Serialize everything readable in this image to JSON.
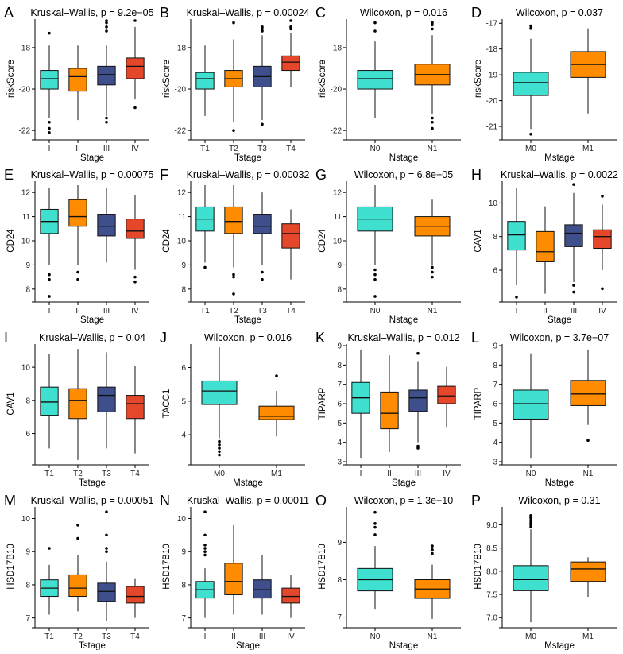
{
  "colors": {
    "cyan": "#40E0D0",
    "orange": "#FF8C00",
    "navy": "#3F4F8C",
    "red": "#E5472B",
    "axis": "#000000"
  },
  "chart_data": [
    {
      "type": "box",
      "letter": "A",
      "title": "Kruskal–Wallis, p = 9.2e−05",
      "ylabel": "riskScore",
      "xlabel": "Stage",
      "ylim": [
        -22.3,
        -16.7
      ],
      "ticks": [
        -22,
        -20,
        -18
      ],
      "categories": [
        "I",
        "II",
        "III",
        "IV"
      ],
      "colorKeys": [
        "cyan",
        "orange",
        "navy",
        "red"
      ],
      "boxes": [
        {
          "q1": -20.0,
          "median": -19.5,
          "q3": -19.1,
          "wlo": -21.4,
          "whi": -17.9,
          "outliers": [
            -17.3,
            -21.6,
            -21.9,
            -22.1
          ]
        },
        {
          "q1": -20.1,
          "median": -19.4,
          "q3": -19.0,
          "wlo": -21.5,
          "whi": -17.9,
          "outliers": []
        },
        {
          "q1": -19.8,
          "median": -19.3,
          "q3": -18.9,
          "wlo": -21.3,
          "whi": -17.9,
          "outliers": [
            -16.7,
            -16.8,
            -17.0,
            -17.2,
            -21.4,
            -21.6
          ]
        },
        {
          "q1": -19.5,
          "median": -18.9,
          "q3": -18.5,
          "wlo": -20.5,
          "whi": -17.0,
          "outliers": [
            -16.7,
            -20.9
          ]
        }
      ]
    },
    {
      "type": "box",
      "letter": "B",
      "title": "Kruskal–Wallis, p = 0.00024",
      "ylabel": "riskScore",
      "xlabel": "Tstage",
      "ylim": [
        -22.3,
        -16.7
      ],
      "ticks": [
        -22,
        -20,
        -18
      ],
      "categories": [
        "T1",
        "T2",
        "T3",
        "T4"
      ],
      "colorKeys": [
        "cyan",
        "orange",
        "navy",
        "red"
      ],
      "boxes": [
        {
          "q1": -20.0,
          "median": -19.5,
          "q3": -19.2,
          "wlo": -21.3,
          "whi": -17.9,
          "outliers": []
        },
        {
          "q1": -19.9,
          "median": -19.5,
          "q3": -19.1,
          "wlo": -21.6,
          "whi": -17.6,
          "outliers": [
            -16.8,
            -22.0
          ]
        },
        {
          "q1": -19.9,
          "median": -19.4,
          "q3": -18.9,
          "wlo": -21.5,
          "whi": -17.4,
          "outliers": [
            -17.0,
            -17.1,
            -17.2,
            -21.7
          ]
        },
        {
          "q1": -19.1,
          "median": -18.7,
          "q3": -18.4,
          "wlo": -19.9,
          "whi": -17.3,
          "outliers": [
            -16.7,
            -17.0,
            -17.1
          ]
        }
      ]
    },
    {
      "type": "box",
      "letter": "C",
      "title": "Wilcoxon, p = 0.016",
      "ylabel": "riskScore",
      "xlabel": "Nstage",
      "ylim": [
        -22.3,
        -16.7
      ],
      "ticks": [
        -22,
        -20,
        -18
      ],
      "categories": [
        "N0",
        "N1"
      ],
      "colorKeys": [
        "cyan",
        "orange"
      ],
      "boxes": [
        {
          "q1": -20.0,
          "median": -19.5,
          "q3": -19.1,
          "wlo": -21.4,
          "whi": -17.7,
          "outliers": [
            -16.8,
            -17.2
          ]
        },
        {
          "q1": -19.8,
          "median": -19.3,
          "q3": -18.8,
          "wlo": -21.2,
          "whi": -17.4,
          "outliers": [
            -16.8,
            -16.9,
            -17.1,
            -21.4,
            -21.6,
            -21.9
          ]
        }
      ]
    },
    {
      "type": "box",
      "letter": "D",
      "title": "Wilcoxon, p = 0.037",
      "ylabel": "riskScore",
      "xlabel": "Mstage",
      "ylim": [
        -21.4,
        -16.9
      ],
      "ticks": [
        -21,
        -20,
        -19,
        -18,
        -17
      ],
      "categories": [
        "M0",
        "M1"
      ],
      "colorKeys": [
        "cyan",
        "orange"
      ],
      "boxes": [
        {
          "q1": -19.8,
          "median": -19.3,
          "q3": -18.9,
          "wlo": -21.1,
          "whi": -17.6,
          "outliers": [
            -17.1,
            -17.2,
            -21.3
          ]
        },
        {
          "q1": -19.1,
          "median": -18.6,
          "q3": -18.1,
          "wlo": -20.5,
          "whi": -17.2,
          "outliers": []
        }
      ]
    },
    {
      "type": "box",
      "letter": "E",
      "title": "Kruskal–Wallis, p = 0.00075",
      "ylabel": "CD24",
      "xlabel": "Stage",
      "ylim": [
        7.6,
        12.4
      ],
      "ticks": [
        8,
        9,
        10,
        11,
        12
      ],
      "categories": [
        "I",
        "II",
        "III",
        "IV"
      ],
      "colorKeys": [
        "cyan",
        "orange",
        "navy",
        "red"
      ],
      "boxes": [
        {
          "q1": 10.3,
          "median": 10.8,
          "q3": 11.3,
          "wlo": 9.0,
          "whi": 12.2,
          "outliers": [
            8.6,
            8.4,
            7.7
          ]
        },
        {
          "q1": 10.6,
          "median": 11.0,
          "q3": 11.7,
          "wlo": 9.0,
          "whi": 12.3,
          "outliers": [
            8.7,
            8.4
          ]
        },
        {
          "q1": 10.2,
          "median": 10.6,
          "q3": 11.1,
          "wlo": 9.1,
          "whi": 12.2,
          "outliers": []
        },
        {
          "q1": 10.1,
          "median": 10.4,
          "q3": 10.9,
          "wlo": 8.8,
          "whi": 11.9,
          "outliers": [
            8.5,
            8.3
          ]
        }
      ]
    },
    {
      "type": "box",
      "letter": "F",
      "title": "Kruskal–Wallis, p = 0.00032",
      "ylabel": "CD24",
      "xlabel": "Tstage",
      "ylim": [
        7.6,
        12.4
      ],
      "ticks": [
        8,
        9,
        10,
        11,
        12
      ],
      "categories": [
        "T1",
        "T2",
        "T3",
        "T4"
      ],
      "colorKeys": [
        "cyan",
        "orange",
        "navy",
        "red"
      ],
      "boxes": [
        {
          "q1": 10.4,
          "median": 10.9,
          "q3": 11.4,
          "wlo": 9.1,
          "whi": 12.3,
          "outliers": [
            8.9
          ]
        },
        {
          "q1": 10.3,
          "median": 10.8,
          "q3": 11.4,
          "wlo": 8.9,
          "whi": 12.3,
          "outliers": [
            8.6,
            8.5,
            7.8
          ]
        },
        {
          "q1": 10.3,
          "median": 10.6,
          "q3": 11.1,
          "wlo": 9.0,
          "whi": 12.0,
          "outliers": [
            8.7,
            8.4
          ]
        },
        {
          "q1": 9.7,
          "median": 10.3,
          "q3": 10.7,
          "wlo": 8.4,
          "whi": 11.3,
          "outliers": []
        }
      ]
    },
    {
      "type": "box",
      "letter": "G",
      "title": "Wilcoxon, p = 6.8e−05",
      "ylabel": "CD24",
      "xlabel": "Nstage",
      "ylim": [
        7.6,
        12.4
      ],
      "ticks": [
        8,
        9,
        10,
        11,
        12
      ],
      "categories": [
        "N0",
        "N1"
      ],
      "colorKeys": [
        "cyan",
        "orange"
      ],
      "boxes": [
        {
          "q1": 10.4,
          "median": 10.9,
          "q3": 11.4,
          "wlo": 9.0,
          "whi": 12.3,
          "outliers": [
            8.8,
            8.6,
            8.4,
            7.7
          ]
        },
        {
          "q1": 10.2,
          "median": 10.6,
          "q3": 11.0,
          "wlo": 9.0,
          "whi": 11.7,
          "outliers": [
            8.9,
            8.7,
            8.5
          ]
        }
      ]
    },
    {
      "type": "box",
      "letter": "H",
      "title": "Kruskal–Wallis, p = 0.0022",
      "ylabel": "CAV1",
      "xlabel": "Stage",
      "ylim": [
        4.3,
        11.2
      ],
      "ticks": [
        6,
        8,
        10
      ],
      "categories": [
        "I",
        "II",
        "III",
        "IV"
      ],
      "colorKeys": [
        "cyan",
        "orange",
        "navy",
        "red"
      ],
      "boxes": [
        {
          "q1": 7.2,
          "median": 8.1,
          "q3": 8.9,
          "wlo": 5.1,
          "whi": 10.9,
          "outliers": [
            4.4
          ]
        },
        {
          "q1": 6.5,
          "median": 7.1,
          "q3": 8.3,
          "wlo": 4.6,
          "whi": 9.8,
          "outliers": []
        },
        {
          "q1": 7.4,
          "median": 8.2,
          "q3": 8.7,
          "wlo": 5.3,
          "whi": 10.6,
          "outliers": [
            11.1,
            5.1,
            4.7
          ]
        },
        {
          "q1": 7.3,
          "median": 8.0,
          "q3": 8.4,
          "wlo": 6.0,
          "whi": 9.9,
          "outliers": [
            10.4,
            4.9
          ]
        }
      ]
    },
    {
      "type": "box",
      "letter": "I",
      "title": "Kruskal–Wallis, p = 0.04",
      "ylabel": "CAV1",
      "xlabel": "Tstage",
      "ylim": [
        4.3,
        11.3
      ],
      "ticks": [
        6,
        8,
        10
      ],
      "categories": [
        "T1",
        "T2",
        "T3",
        "T4"
      ],
      "colorKeys": [
        "cyan",
        "orange",
        "navy",
        "red"
      ],
      "boxes": [
        {
          "q1": 7.1,
          "median": 7.9,
          "q3": 8.8,
          "wlo": 5.1,
          "whi": 10.8,
          "outliers": []
        },
        {
          "q1": 6.9,
          "median": 8.0,
          "q3": 8.7,
          "wlo": 4.4,
          "whi": 11.1,
          "outliers": []
        },
        {
          "q1": 7.3,
          "median": 8.3,
          "q3": 8.8,
          "wlo": 5.1,
          "whi": 10.9,
          "outliers": []
        },
        {
          "q1": 6.9,
          "median": 7.8,
          "q3": 8.3,
          "wlo": 4.8,
          "whi": 10.1,
          "outliers": []
        }
      ]
    },
    {
      "type": "box",
      "letter": "J",
      "title": "Wilcoxon, p = 0.016",
      "ylabel": "TACC1",
      "xlabel": "Mstage",
      "ylim": [
        3.2,
        6.65
      ],
      "ticks": [
        4,
        5,
        6
      ],
      "categories": [
        "M0",
        "M1"
      ],
      "colorKeys": [
        "cyan",
        "orange"
      ],
      "boxes": [
        {
          "q1": 4.9,
          "median": 5.3,
          "q3": 5.6,
          "wlo": 3.9,
          "whi": 6.6,
          "outliers": [
            3.8,
            3.7,
            3.6,
            3.5,
            3.4
          ]
        },
        {
          "q1": 4.45,
          "median": 4.55,
          "q3": 4.85,
          "wlo": 3.95,
          "whi": 5.3,
          "outliers": [
            5.75
          ]
        }
      ]
    },
    {
      "type": "box",
      "letter": "K",
      "title": "Kruskal–Wallis, p = 0.012",
      "ylabel": "TIPARP",
      "xlabel": "Stage",
      "ylim": [
        3.0,
        9.0
      ],
      "ticks": [
        3,
        4,
        5,
        6,
        7,
        8,
        9
      ],
      "categories": [
        "I",
        "II",
        "III",
        "IV"
      ],
      "colorKeys": [
        "cyan",
        "orange",
        "navy",
        "red"
      ],
      "boxes": [
        {
          "q1": 5.5,
          "median": 6.3,
          "q3": 7.1,
          "wlo": 3.2,
          "whi": 8.8,
          "outliers": []
        },
        {
          "q1": 4.7,
          "median": 5.5,
          "q3": 6.6,
          "wlo": 3.5,
          "whi": 8.5,
          "outliers": []
        },
        {
          "q1": 5.6,
          "median": 6.3,
          "q3": 6.7,
          "wlo": 4.0,
          "whi": 8.2,
          "outliers": [
            8.6,
            3.8,
            3.7
          ]
        },
        {
          "q1": 6.0,
          "median": 6.4,
          "q3": 6.9,
          "wlo": 4.8,
          "whi": 7.9,
          "outliers": []
        }
      ]
    },
    {
      "type": "box",
      "letter": "L",
      "title": "Wilcoxon, p = 3.7e−07",
      "ylabel": "TIPARP",
      "xlabel": "Nstage",
      "ylim": [
        3.0,
        9.0
      ],
      "ticks": [
        3,
        4,
        5,
        6,
        7,
        8,
        9
      ],
      "categories": [
        "N0",
        "N1"
      ],
      "colorKeys": [
        "cyan",
        "orange"
      ],
      "boxes": [
        {
          "q1": 5.2,
          "median": 6.0,
          "q3": 6.7,
          "wlo": 3.2,
          "whi": 8.6,
          "outliers": []
        },
        {
          "q1": 5.9,
          "median": 6.5,
          "q3": 7.2,
          "wlo": 4.9,
          "whi": 8.8,
          "outliers": [
            4.1
          ]
        }
      ]
    },
    {
      "type": "box",
      "letter": "M",
      "title": "Kruskal–Wallis, p = 0.00051",
      "ylabel": "HSD17B10",
      "xlabel": "Tstage",
      "ylim": [
        6.8,
        10.3
      ],
      "ticks": [
        7,
        8,
        9,
        10
      ],
      "categories": [
        "T1",
        "T2",
        "T3",
        "T4"
      ],
      "colorKeys": [
        "cyan",
        "orange",
        "navy",
        "red"
      ],
      "boxes": [
        {
          "q1": 7.65,
          "median": 7.9,
          "q3": 8.15,
          "wlo": 7.1,
          "whi": 8.6,
          "outliers": [
            9.1
          ]
        },
        {
          "q1": 7.65,
          "median": 7.9,
          "q3": 8.3,
          "wlo": 7.2,
          "whi": 8.9,
          "outliers": [
            9.8,
            9.4
          ]
        },
        {
          "q1": 7.5,
          "median": 7.8,
          "q3": 8.05,
          "wlo": 6.9,
          "whi": 8.7,
          "outliers": [
            10.2,
            9.5,
            9.1,
            9.0
          ]
        },
        {
          "q1": 7.45,
          "median": 7.65,
          "q3": 7.95,
          "wlo": 7.0,
          "whi": 8.2,
          "outliers": []
        }
      ]
    },
    {
      "type": "box",
      "letter": "N",
      "title": "Kruskal–Wallis, p = 0.00011",
      "ylabel": "HSD17B10",
      "xlabel": "Stage",
      "ylim": [
        6.8,
        10.3
      ],
      "ticks": [
        7,
        8,
        9,
        10
      ],
      "categories": [
        "I",
        "II",
        "III",
        "IV"
      ],
      "colorKeys": [
        "cyan",
        "orange",
        "navy",
        "red"
      ],
      "boxes": [
        {
          "q1": 7.6,
          "median": 7.85,
          "q3": 8.1,
          "wlo": 7.0,
          "whi": 8.5,
          "outliers": [
            10.2,
            9.5,
            9.2,
            9.1,
            9.0,
            8.9
          ]
        },
        {
          "q1": 7.7,
          "median": 8.1,
          "q3": 8.65,
          "wlo": 7.1,
          "whi": 9.8,
          "outliers": []
        },
        {
          "q1": 7.6,
          "median": 7.85,
          "q3": 8.15,
          "wlo": 7.1,
          "whi": 8.9,
          "outliers": []
        },
        {
          "q1": 7.45,
          "median": 7.65,
          "q3": 7.9,
          "wlo": 7.0,
          "whi": 8.3,
          "outliers": []
        }
      ]
    },
    {
      "type": "box",
      "letter": "O",
      "title": "Wilcoxon, p = 1.3e−10",
      "ylabel": "HSD17B10",
      "xlabel": "Nstage",
      "ylim": [
        6.8,
        9.9
      ],
      "ticks": [
        7,
        8,
        9
      ],
      "categories": [
        "N0",
        "N1"
      ],
      "colorKeys": [
        "cyan",
        "orange"
      ],
      "boxes": [
        {
          "q1": 7.7,
          "median": 8.0,
          "q3": 8.3,
          "wlo": 7.2,
          "whi": 8.9,
          "outliers": [
            9.8,
            9.5,
            9.4,
            9.2
          ]
        },
        {
          "q1": 7.5,
          "median": 7.75,
          "q3": 8.0,
          "wlo": 6.95,
          "whi": 8.4,
          "outliers": [
            8.9,
            8.8,
            8.7
          ]
        }
      ]
    },
    {
      "type": "box",
      "letter": "P",
      "title": "Wilcoxon, p = 0.31",
      "ylabel": "HSD17B10",
      "xlabel": "Mstage",
      "ylim": [
        6.85,
        9.35
      ],
      "ticks": [
        7.0,
        7.5,
        8.0,
        8.5,
        9.0
      ],
      "tickDecimals": 1,
      "categories": [
        "M0",
        "M1"
      ],
      "colorKeys": [
        "cyan",
        "orange"
      ],
      "boxes": [
        {
          "q1": 7.58,
          "median": 7.82,
          "q3": 8.12,
          "wlo": 6.9,
          "whi": 8.9,
          "outliers": [
            9.2,
            9.15,
            9.1,
            9.05,
            9.0,
            8.95
          ]
        },
        {
          "q1": 7.78,
          "median": 8.05,
          "q3": 8.2,
          "wlo": 7.45,
          "whi": 8.3,
          "outliers": []
        }
      ]
    }
  ]
}
